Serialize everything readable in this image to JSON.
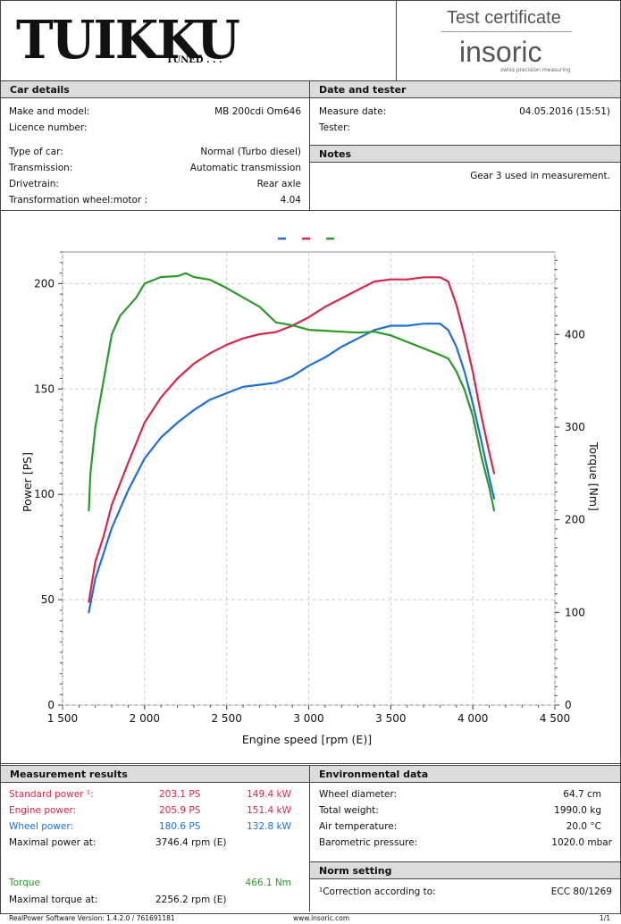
{
  "logo": {
    "brand": "TUIKKU",
    "tagline": "TUNED . . ."
  },
  "certificate": {
    "title": "Test certificate",
    "brand": "insoric",
    "brand_sub": "swiss precision measuring"
  },
  "car_details": {
    "header": "Car details",
    "make_model_label": "Make and model:",
    "make_model": "MB 200cdi Om646",
    "licence_label": "Licence number:",
    "licence": "",
    "type_label": "Type of car:",
    "type": "Normal (Turbo diesel)",
    "transmission_label": "Transmission:",
    "transmission": "Automatic transmission",
    "drivetrain_label": "Drivetrain:",
    "drivetrain": "Rear axle",
    "ratio_label": "Transformation wheel:motor :",
    "ratio": "4.04"
  },
  "date_tester": {
    "header": "Date and tester",
    "date_label": "Measure date:",
    "date": "04.05.2016 (15:51)",
    "tester_label": "Tester:",
    "tester": ""
  },
  "notes": {
    "header": "Notes",
    "text": "Gear 3 used in measurement."
  },
  "chart_data": {
    "type": "line",
    "xlabel": "Engine speed [rpm (E)]",
    "ylabel": "Power [PS]",
    "y2label": "Torque [Nm]",
    "xlim": [
      1500,
      4500
    ],
    "ylim": [
      0,
      215
    ],
    "y2lim": [
      0,
      489
    ],
    "xticks": [
      1500,
      2000,
      2500,
      3000,
      3500,
      4000,
      4500
    ],
    "xtick_labels": [
      "1 500",
      "2 000",
      "2 500",
      "3 000",
      "3 500",
      "4 000",
      "4 500"
    ],
    "yticks": [
      0,
      50,
      100,
      150,
      200
    ],
    "y2ticks": [
      0,
      100,
      200,
      300,
      400
    ],
    "grid": true,
    "legend": "top-center",
    "colors": {
      "wheel": "#1f6fd6",
      "engine": "#d7264b",
      "torque": "#2a9a2a"
    },
    "series": [
      {
        "key": "engine",
        "axis": "left",
        "x": [
          1660,
          1700,
          1750,
          1800,
          1850,
          1900,
          2000,
          2100,
          2200,
          2300,
          2400,
          2500,
          2600,
          2700,
          2800,
          2900,
          3000,
          3100,
          3200,
          3300,
          3400,
          3500,
          3600,
          3700,
          3750,
          3800,
          3850,
          3900,
          3950,
          4000,
          4050,
          4100,
          4130
        ],
        "y": [
          49,
          68,
          80,
          95,
          105,
          115,
          134,
          146,
          155,
          162,
          167,
          171,
          174,
          176,
          177,
          180,
          184,
          189,
          193,
          197,
          201,
          202,
          202,
          203,
          203,
          203,
          201,
          190,
          175,
          158,
          138,
          120,
          110
        ]
      },
      {
        "key": "wheel",
        "axis": "left",
        "x": [
          1660,
          1700,
          1750,
          1800,
          1850,
          1900,
          2000,
          2100,
          2200,
          2300,
          2400,
          2500,
          2600,
          2700,
          2800,
          2900,
          3000,
          3100,
          3200,
          3300,
          3400,
          3500,
          3600,
          3700,
          3750,
          3800,
          3850,
          3900,
          3950,
          4000,
          4050,
          4100,
          4130
        ],
        "y": [
          44,
          60,
          72,
          84,
          93,
          102,
          117,
          127,
          134,
          140,
          145,
          148,
          151,
          152,
          153,
          156,
          161,
          165,
          170,
          174,
          178,
          180,
          180,
          181,
          181,
          181,
          178,
          170,
          158,
          143,
          126,
          108,
          98
        ]
      },
      {
        "key": "torque",
        "axis": "right",
        "x": [
          1660,
          1670,
          1700,
          1750,
          1800,
          1850,
          1900,
          1950,
          2000,
          2100,
          2200,
          2250,
          2300,
          2400,
          2500,
          2600,
          2700,
          2800,
          2900,
          3000,
          3100,
          3200,
          3300,
          3400,
          3500,
          3600,
          3700,
          3800,
          3850,
          3900,
          3950,
          4000,
          4050,
          4100,
          4130
        ],
        "y": [
          210,
          250,
          300,
          350,
          400,
          420,
          430,
          440,
          455,
          462,
          463,
          466,
          462,
          459,
          450,
          440,
          430,
          413,
          410,
          405,
          404,
          403,
          402,
          403,
          399,
          392,
          385,
          378,
          374,
          360,
          340,
          312,
          270,
          235,
          210
        ]
      }
    ]
  },
  "results": {
    "header": "Measurement results",
    "rows": [
      {
        "label": "Standard power ¹:",
        "ps": "203.1 PS",
        "kw": "149.4 kW"
      },
      {
        "label": "Engine power:",
        "ps": "205.9 PS",
        "kw": "151.4 kW"
      },
      {
        "label": "Wheel power:",
        "ps": "180.6 PS",
        "kw": "132.8 kW"
      }
    ],
    "max_power_label": "Maximal power at:",
    "max_power": "3746.4 rpm (E)",
    "torque_label": "Torque",
    "torque": "466.1 Nm",
    "max_torque_label": "Maximal torque at:",
    "max_torque": "2256.2 rpm (E)"
  },
  "environment": {
    "header": "Environmental data",
    "rows": [
      {
        "label": "Wheel diameter:",
        "value": "64.7 cm"
      },
      {
        "label": "Total weight:",
        "value": "1990.0 kg"
      },
      {
        "label": "Air temperature:",
        "value": "20.0 °C"
      },
      {
        "label": "Barometric pressure:",
        "value": "1020.0 mbar"
      }
    ]
  },
  "norm": {
    "header": "Norm setting",
    "label": "¹Correction according to:",
    "value": "ECC 80/1269"
  },
  "footer": {
    "version": "RealPower Software Version: 1.4.2.0 / 761691181",
    "url": "www.insoric.com",
    "page": "1/1"
  }
}
